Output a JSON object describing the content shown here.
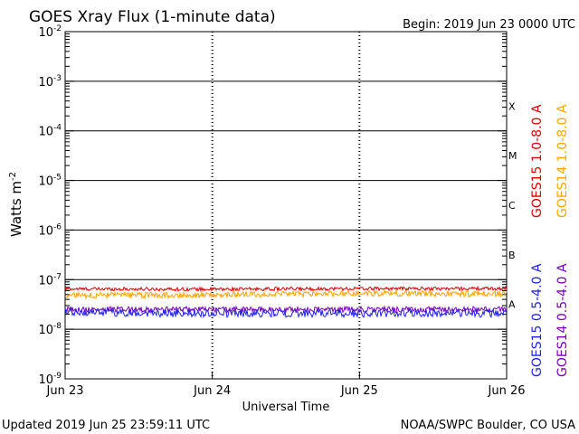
{
  "header": {
    "title": "GOES Xray Flux (1-minute data)",
    "begin": "Begin:  2019 Jun 23 0000 UTC"
  },
  "footer": {
    "updated": "Updated 2019 Jun 25 23:59:11 UTC",
    "credit": "NOAA/SWPC Boulder, CO USA"
  },
  "axes": {
    "ylabel_base": "Watts m",
    "ylabel_exp": "-2",
    "xlabel": "Universal Time",
    "ytick_base": "10",
    "yticks": [
      "-2",
      "-3",
      "-4",
      "-5",
      "-6",
      "-7",
      "-8",
      "-9"
    ],
    "xticks": [
      "Jun 23",
      "Jun 24",
      "Jun 25",
      "Jun 26"
    ]
  },
  "flare_classes": [
    "X",
    "M",
    "C",
    "B",
    "A"
  ],
  "colors": {
    "goes15_long": "#dd0000",
    "goes14_long": "#ffa500",
    "goes15_short": "#2222ee",
    "goes14_short": "#7700bb"
  },
  "chart_data": {
    "type": "line",
    "title": "GOES Xray Flux (1-minute data)",
    "xlabel": "Universal Time",
    "ylabel": "Watts m-2",
    "yscale": "log",
    "ylim": [
      1e-09,
      0.01
    ],
    "xlim": [
      "2019-06-23 00:00",
      "2019-06-26 00:00"
    ],
    "categories": [
      "Jun 23",
      "Jun 24",
      "Jun 25",
      "Jun 26"
    ],
    "grid": true,
    "legend_position": "right (vertical)",
    "series": [
      {
        "name": "GOES15 1.0-8.0 A",
        "color": "#dd0000",
        "values": [
          6.5e-08,
          6.4e-08,
          6.6e-08,
          6.6e-08
        ]
      },
      {
        "name": "GOES14 1.0-8.0 A",
        "color": "#ffa500",
        "values": [
          4.8e-08,
          4.9e-08,
          5.3e-08,
          5.1e-08
        ]
      },
      {
        "name": "GOES15 0.5-4.0 A",
        "color": "#2222ee",
        "values": [
          2.2e-08,
          2.1e-08,
          2.1e-08,
          2.1e-08
        ]
      },
      {
        "name": "GOES14 0.5-4.0 A",
        "color": "#7700bb",
        "values": [
          2.5e-08,
          2.5e-08,
          2.5e-08,
          2.5e-08
        ]
      }
    ]
  }
}
